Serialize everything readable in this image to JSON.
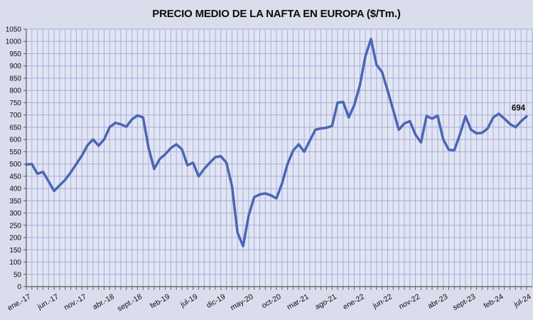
{
  "chart_data": {
    "type": "line",
    "title": "PRECIO MEDIO DE LA NAFTA EN EUROPA ($/Tm.)",
    "xlabel": "",
    "ylabel": "",
    "ylim": [
      0,
      1050
    ],
    "ytick_step": 50,
    "grid": "both, every month vertical / every 50 horizontal",
    "legend": "none",
    "x_tick_interval_months": 5,
    "x_tick_labels": [
      "ene.-17",
      "jun.-17",
      "nov.-17",
      "abr.-18",
      "sept.-18",
      "feb-19",
      "jul-19",
      "dic-19",
      "may-20",
      "oct-20",
      "mar-21",
      "ago-21",
      "ene-22",
      "jun-22",
      "nov-22",
      "abr-23",
      "sept-23",
      "feb-24",
      "jul-24"
    ],
    "series": [
      {
        "name": "Precio medio de la nafta en Europa ($/Tm.)",
        "start_month": "ene-17",
        "end_month": "jul-24",
        "values": [
          498,
          500,
          460,
          468,
          430,
          390,
          413,
          436,
          466,
          500,
          534,
          576,
          600,
          575,
          600,
          650,
          668,
          662,
          652,
          682,
          698,
          690,
          565,
          480,
          520,
          540,
          565,
          580,
          560,
          495,
          505,
          450,
          480,
          505,
          528,
          532,
          505,
          410,
          220,
          165,
          290,
          365,
          376,
          380,
          372,
          360,
          420,
          500,
          555,
          580,
          550,
          595,
          640,
          645,
          648,
          655,
          750,
          753,
          690,
          740,
          820,
          940,
          1010,
          905,
          875,
          800,
          720,
          640,
          665,
          675,
          620,
          588,
          695,
          685,
          697,
          600,
          558,
          556,
          620,
          695,
          640,
          625,
          627,
          645,
          690,
          705,
          685,
          663,
          650,
          674,
          694
        ]
      }
    ],
    "last_point_label": "694",
    "colors": {
      "line": "#4a66b4",
      "grid": "#a5aedd",
      "plot_bg": "#e2e5f2",
      "outer_bg": "#d9ddec",
      "axis": "#595959",
      "text": "#0d0d0d"
    }
  }
}
